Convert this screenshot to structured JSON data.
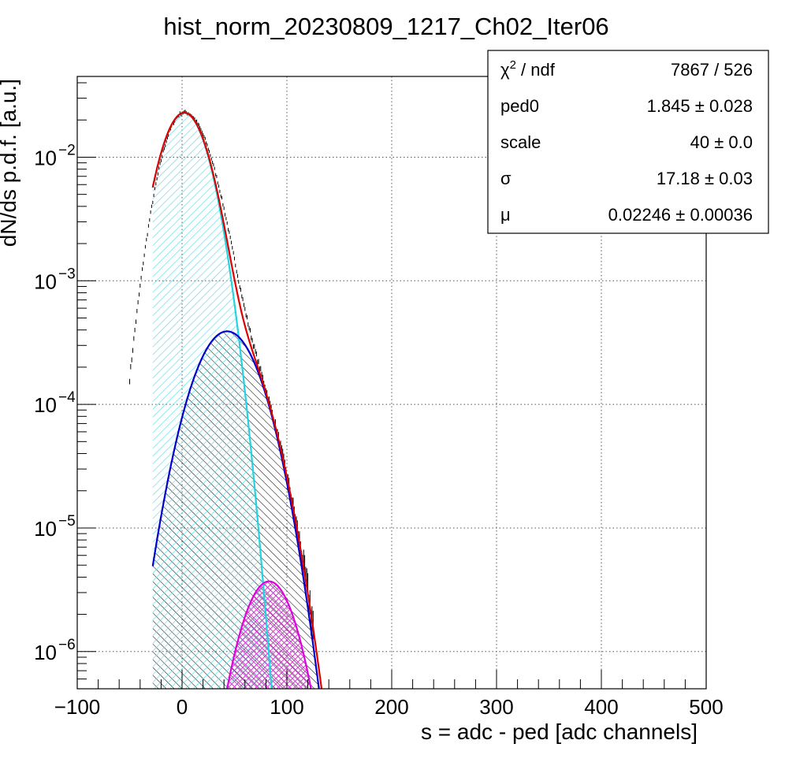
{
  "chart_data": {
    "type": "line",
    "title": "hist_norm_20230809_1217_Ch02_Iter06",
    "xlabel": "s = adc - ped [adc channels]",
    "ylabel": "dN/ds p.d.f. [a.u.]",
    "xlim": [
      -100,
      500
    ],
    "ylim": [
      5e-07,
      0.045
    ],
    "yscale": "log",
    "grid": true,
    "x_ticks": [
      -100,
      0,
      100,
      200,
      300,
      400,
      500
    ],
    "x_tick_labels": [
      "−100",
      "0",
      "100",
      "200",
      "300",
      "400",
      "500"
    ],
    "y_ticks": [
      1e-06,
      1e-05,
      0.0001,
      0.001,
      0.01
    ],
    "y_tick_mantissa": "10",
    "y_tick_exponents": [
      "−6",
      "−5",
      "−4",
      "−3",
      "−2"
    ],
    "colors": {
      "data": "#000000",
      "total_fit": "#e00000",
      "pedestal": "#22d3e0",
      "one_pe": "#0000cc",
      "two_pe": "#e000e0",
      "pedestal_fill": "#66dde6",
      "two_pe_fill": "#cc44cc"
    },
    "series": [
      {
        "key": "pedestal",
        "sigma": 18,
        "peak_x": 2,
        "peak_y": 0.0228
      },
      {
        "key": "one_pe",
        "sigma": 24,
        "peak_x": 43,
        "peak_y": 0.00039
      },
      {
        "key": "two_pe",
        "sigma": 20,
        "peak_x": 83,
        "peak_y": 3.7e-06
      }
    ],
    "fit_range": [
      -28,
      140
    ],
    "stats": {
      "rows": [
        {
          "name": "χ",
          "sup": "2",
          "rest": " / ndf",
          "value": "7867 / 526"
        },
        {
          "name": "ped0",
          "sup": "",
          "rest": "",
          "value": "1.845  ± 0.028"
        },
        {
          "name": "scale",
          "sup": "",
          "rest": "",
          "value": "40  ± 0.0"
        },
        {
          "name": "σ",
          "sup": "",
          "rest": "",
          "value": "17.18  ± 0.03"
        },
        {
          "name": "μ",
          "sup": "",
          "rest": "",
          "value": "0.02246  ± 0.00036"
        }
      ]
    }
  }
}
